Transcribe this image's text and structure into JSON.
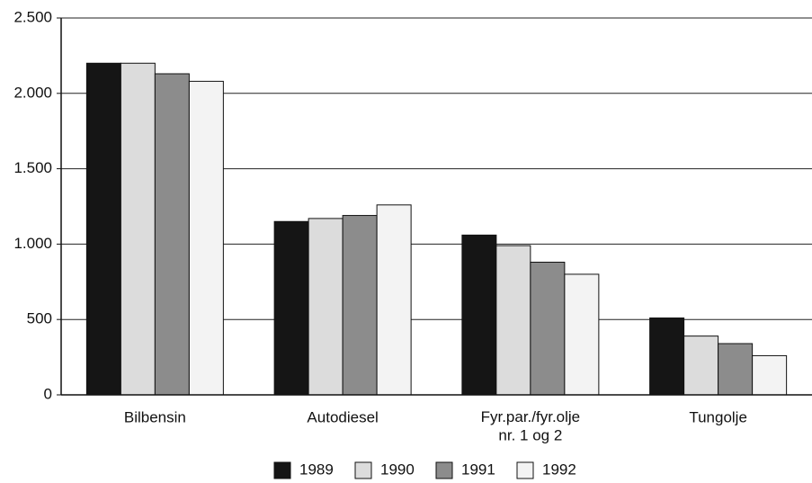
{
  "chart_data": {
    "type": "bar",
    "categories": [
      "Bilbensin",
      "Autodiesel",
      "Fyr.par./fyr.olje\nnr. 1 og 2",
      "Tungolje"
    ],
    "series": [
      {
        "name": "1989",
        "color": "#151515",
        "values": [
          2200,
          1150,
          1060,
          510
        ]
      },
      {
        "name": "1990",
        "color": "#dcdcdc",
        "values": [
          2200,
          1170,
          990,
          390
        ]
      },
      {
        "name": "1991",
        "color": "#8c8c8c",
        "values": [
          2130,
          1190,
          880,
          340
        ]
      },
      {
        "name": "1992",
        "color": "#f3f3f3",
        "values": [
          2080,
          1260,
          800,
          260
        ]
      }
    ],
    "ylim": [
      0,
      2500
    ],
    "yticks": [
      0,
      500,
      {
        "value": 1000,
        "label": "1.000"
      },
      {
        "value": 1500,
        "label": "1.500"
      },
      {
        "value": 2000,
        "label": "2.000"
      },
      {
        "value": 2500,
        "label": "2.500"
      }
    ],
    "grid": true,
    "legend": "bottom"
  }
}
